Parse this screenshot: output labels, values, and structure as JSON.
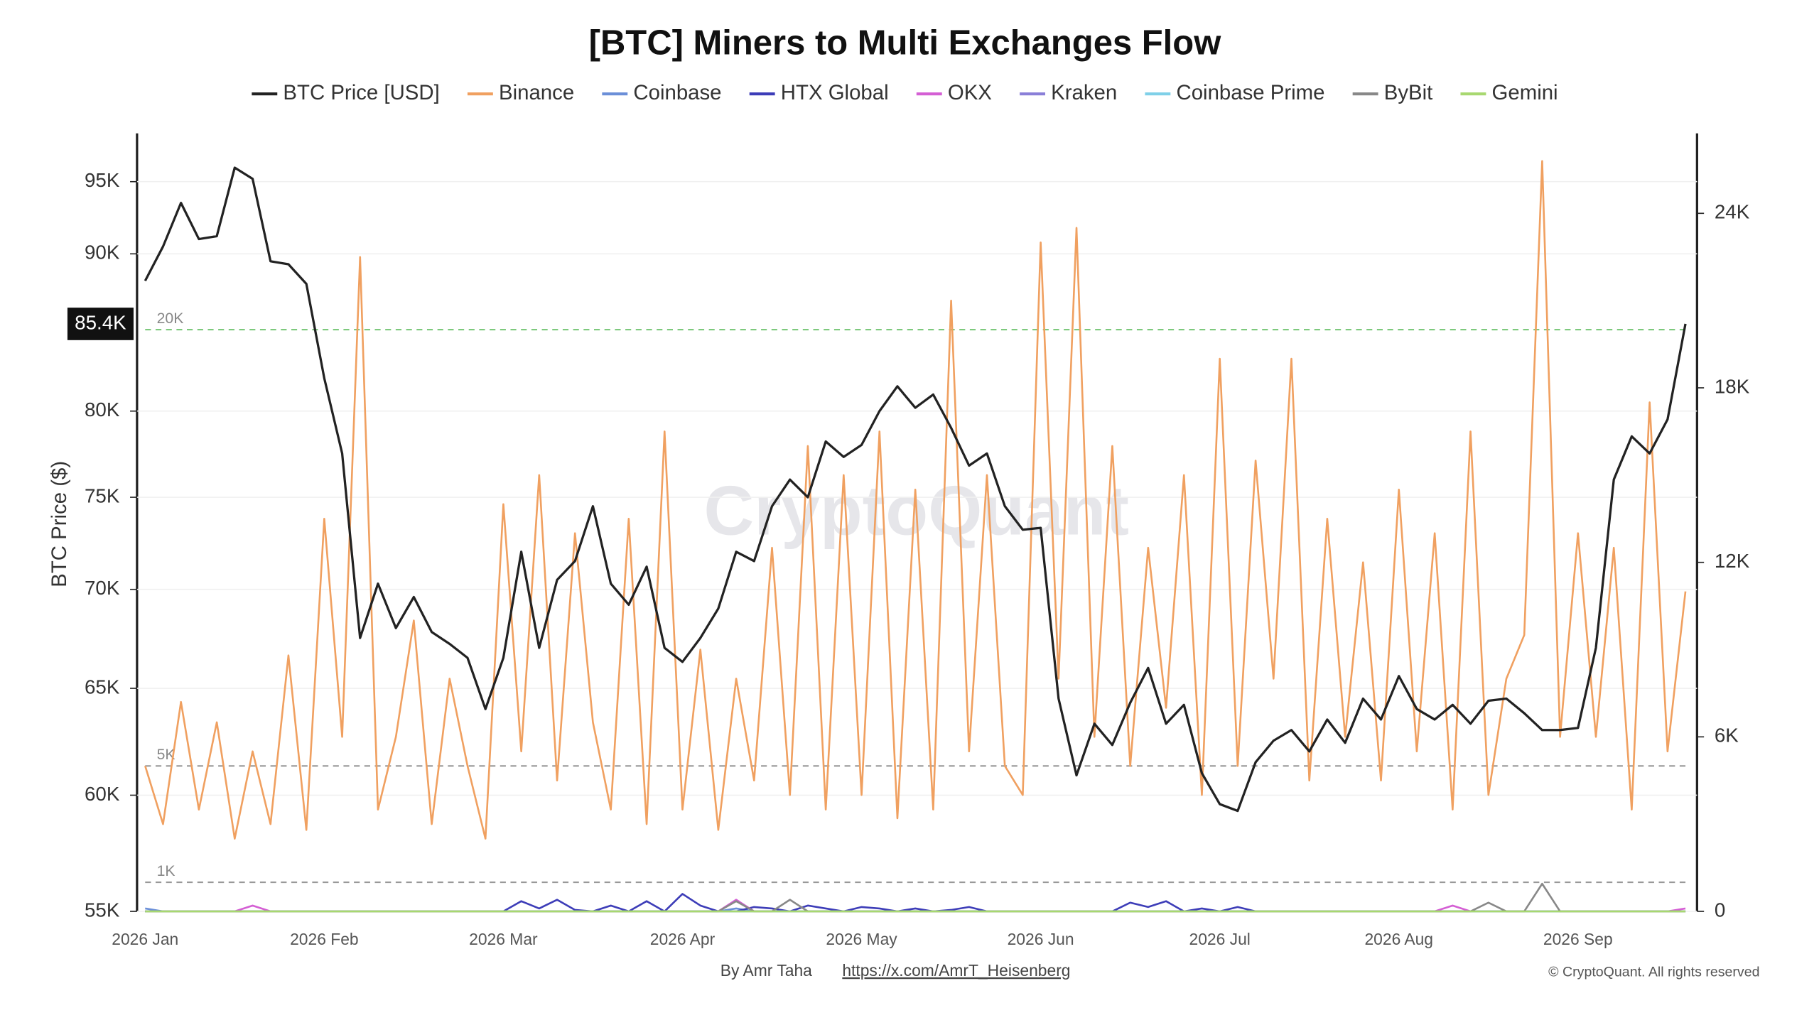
{
  "chart_data": {
    "type": "line",
    "title": "[BTC] Miners to Multi Exchanges Flow",
    "y_label": "BTC Price ($)",
    "watermark": "CryptoQuant",
    "credit": "By Amr Taha",
    "credit_link": "https://x.com/AmrT_Heisenberg",
    "copyright": "© CryptoQuant. All rights reserved",
    "ylog": true,
    "grid": true,
    "legend": "top",
    "categories": [
      "2026 Jan",
      null,
      null,
      null,
      null,
      null,
      null,
      null,
      null,
      null,
      "2026 Feb",
      null,
      null,
      null,
      null,
      null,
      null,
      null,
      null,
      null,
      "2026 Mar",
      null,
      null,
      null,
      null,
      null,
      null,
      null,
      null,
      null,
      "2026 Apr",
      null,
      null,
      null,
      null,
      null,
      null,
      null,
      null,
      null,
      "2026 May",
      null,
      null,
      null,
      null,
      null,
      null,
      null,
      null,
      null,
      "2026 Jun",
      null,
      null,
      null,
      null,
      null,
      null,
      null,
      null,
      null,
      "2026 Jul",
      null,
      null,
      null,
      null,
      null,
      null,
      null,
      null,
      null,
      "2026 Aug",
      null,
      null,
      null,
      null,
      null,
      null,
      null,
      null,
      null,
      "2026 Sep",
      null,
      null,
      null,
      null,
      null,
      null
    ],
    "ylim": [
      55000,
      98500
    ],
    "yticks": [
      {
        "value": 55000,
        "label": "55K"
      },
      {
        "value": 60000,
        "label": "60K"
      },
      {
        "value": 65000,
        "label": "65K"
      },
      {
        "value": 70000,
        "label": "70K"
      },
      {
        "value": 75000,
        "label": "75K"
      },
      {
        "value": 80000,
        "label": "80K"
      },
      {
        "value": 90000,
        "label": "90K"
      },
      {
        "value": 95000,
        "label": "95K"
      }
    ],
    "y2lim": [
      0,
      26750
    ],
    "y2ticks": [
      0,
      {
        "value": 6000,
        "label": "6K"
      },
      {
        "value": 12000,
        "label": "12K"
      },
      {
        "value": 18000,
        "label": "18K"
      },
      {
        "value": 24000,
        "label": "24K"
      }
    ],
    "price_tag": {
      "value": 85400,
      "label": "85.4K"
    },
    "ref_lines": [
      {
        "value": 20000,
        "label": "20K",
        "color": "#7dc97d"
      },
      {
        "value": 5000,
        "label": "5K",
        "color": "#999999"
      },
      {
        "value": 1000,
        "label": "1K",
        "color": "#999999"
      }
    ],
    "series": [
      {
        "name": "BTC Price [USD]",
        "color": "#222222",
        "axis": "y",
        "values": [
          88200,
          90500,
          93500,
          91000,
          91200,
          96000,
          95200,
          89500,
          89300,
          88000,
          82000,
          77500,
          67500,
          70300,
          68000,
          69600,
          67800,
          67200,
          66500,
          64000,
          66500,
          72000,
          67000,
          70500,
          71500,
          74500,
          70300,
          69200,
          71200,
          67000,
          66300,
          67500,
          69000,
          72000,
          71500,
          74500,
          76000,
          75000,
          78200,
          77300,
          78000,
          80000,
          81500,
          80200,
          81000,
          79000,
          76800,
          77500,
          74500,
          73200,
          73300,
          64500,
          60900,
          63300,
          62300,
          64300,
          66000,
          63300,
          64200,
          61000,
          59600,
          59300,
          61500,
          62500,
          63000,
          62000,
          63500,
          62400,
          64500,
          63500,
          65600,
          64000,
          63500,
          64200,
          63300,
          64400,
          64500,
          63800,
          63000,
          63000,
          63100,
          67000,
          76000,
          78500,
          77500,
          79500,
          85400
        ]
      },
      {
        "name": "Binance",
        "color": "#f0a060",
        "axis": "y2",
        "values": [
          5000,
          3000,
          7200,
          3500,
          6500,
          2500,
          5500,
          3000,
          8800,
          2800,
          13500,
          6000,
          22500,
          3500,
          6000,
          10000,
          3000,
          8000,
          5000,
          2500,
          14000,
          5500,
          15000,
          4500,
          13000,
          6500,
          3500,
          13500,
          3000,
          16500,
          3500,
          9000,
          2800,
          8000,
          4500,
          12500,
          4000,
          16000,
          3500,
          15000,
          4000,
          16500,
          3200,
          14500,
          3500,
          21000,
          5500,
          15000,
          5000,
          4000,
          23000,
          8000,
          23500,
          6000,
          16000,
          5000,
          12500,
          7000,
          15000,
          4000,
          19000,
          5000,
          15500,
          8000,
          19000,
          4500,
          13500,
          6000,
          12000,
          4500,
          14500,
          5500,
          13000,
          3500,
          16500,
          4000,
          8000,
          9500,
          25800,
          6000,
          13000,
          6000,
          12500,
          3500,
          17500,
          5500,
          11000
        ]
      },
      {
        "name": "Coinbase",
        "color": "#6b8fd8",
        "axis": "y2",
        "values": [
          100,
          0,
          0,
          0,
          0,
          0,
          0,
          0,
          0,
          0,
          0,
          0,
          0,
          0,
          0,
          0,
          0,
          0,
          0,
          0,
          0,
          0,
          0,
          0,
          0,
          0,
          0,
          0,
          0,
          0,
          0,
          0,
          0,
          100,
          0,
          0,
          0,
          0,
          0,
          0,
          0,
          0,
          0,
          0,
          0,
          0,
          0,
          0,
          0,
          0,
          0,
          0,
          0,
          0,
          0,
          0,
          0,
          0,
          0,
          0,
          0,
          0,
          0,
          0,
          0,
          0,
          0,
          0,
          0,
          0,
          0,
          0,
          0,
          0,
          0,
          0,
          0,
          0,
          0,
          0,
          0,
          0,
          0,
          0,
          0,
          0,
          0
        ]
      },
      {
        "name": "HTX Global",
        "color": "#3d3db8",
        "axis": "y2",
        "values": [
          0,
          0,
          0,
          0,
          0,
          0,
          0,
          0,
          0,
          0,
          0,
          0,
          0,
          0,
          0,
          0,
          0,
          0,
          0,
          0,
          0,
          350,
          100,
          400,
          50,
          0,
          200,
          0,
          350,
          0,
          600,
          200,
          0,
          0,
          150,
          100,
          0,
          200,
          100,
          0,
          150,
          100,
          0,
          100,
          0,
          50,
          150,
          0,
          0,
          0,
          0,
          0,
          0,
          0,
          0,
          300,
          150,
          350,
          0,
          100,
          0,
          150,
          0,
          0,
          0,
          0,
          0,
          0,
          0,
          0,
          0,
          0,
          0,
          0,
          0,
          0,
          0,
          0,
          0,
          0,
          0,
          0,
          0,
          0,
          0,
          0,
          0
        ]
      },
      {
        "name": "OKX",
        "color": "#d45fd4",
        "axis": "y2",
        "values": [
          0,
          0,
          0,
          0,
          0,
          0,
          200,
          0,
          0,
          0,
          0,
          0,
          0,
          0,
          0,
          0,
          0,
          0,
          0,
          0,
          0,
          0,
          0,
          0,
          0,
          0,
          0,
          0,
          0,
          0,
          0,
          0,
          0,
          400,
          0,
          0,
          0,
          0,
          0,
          0,
          0,
          0,
          0,
          0,
          0,
          0,
          0,
          0,
          0,
          0,
          0,
          0,
          0,
          0,
          0,
          0,
          0,
          0,
          0,
          0,
          0,
          0,
          0,
          0,
          0,
          0,
          0,
          0,
          0,
          0,
          0,
          0,
          0,
          200,
          0,
          0,
          0,
          0,
          0,
          0,
          0,
          0,
          0,
          0,
          0,
          0,
          100
        ]
      },
      {
        "name": "Kraken",
        "color": "#8a7fd8",
        "axis": "y2",
        "values": [
          0,
          0,
          0,
          0,
          0,
          0,
          0,
          0,
          0,
          0,
          0,
          0,
          0,
          0,
          0,
          0,
          0,
          0,
          0,
          0,
          0,
          0,
          0,
          0,
          0,
          0,
          0,
          0,
          0,
          0,
          0,
          0,
          0,
          0,
          0,
          0,
          0,
          0,
          0,
          0,
          0,
          0,
          0,
          0,
          0,
          0,
          0,
          0,
          0,
          0,
          0,
          0,
          0,
          0,
          0,
          0,
          0,
          0,
          0,
          0,
          0,
          0,
          0,
          0,
          0,
          0,
          0,
          0,
          0,
          0,
          0,
          0,
          0,
          0,
          0,
          0,
          0,
          0,
          0,
          0,
          0,
          0,
          0,
          0,
          0,
          0,
          0
        ]
      },
      {
        "name": "Coinbase Prime",
        "color": "#7fd0e8",
        "axis": "y2",
        "values": [
          0,
          0,
          0,
          0,
          0,
          0,
          0,
          0,
          0,
          0,
          0,
          0,
          0,
          0,
          0,
          0,
          0,
          0,
          0,
          0,
          0,
          0,
          0,
          0,
          0,
          0,
          0,
          0,
          0,
          0,
          0,
          0,
          0,
          0,
          0,
          0,
          0,
          0,
          0,
          0,
          0,
          0,
          0,
          0,
          0,
          0,
          0,
          0,
          0,
          0,
          0,
          0,
          0,
          0,
          0,
          0,
          0,
          0,
          0,
          0,
          0,
          0,
          0,
          0,
          0,
          0,
          0,
          0,
          0,
          0,
          0,
          0,
          0,
          0,
          0,
          0,
          0,
          0,
          0,
          0,
          0,
          0,
          0,
          0,
          0,
          0,
          0
        ]
      },
      {
        "name": "ByBit",
        "color": "#888888",
        "axis": "y2",
        "values": [
          0,
          0,
          0,
          0,
          0,
          0,
          0,
          0,
          0,
          0,
          0,
          0,
          0,
          0,
          0,
          0,
          0,
          0,
          0,
          0,
          0,
          0,
          0,
          0,
          0,
          0,
          0,
          0,
          0,
          0,
          0,
          0,
          0,
          350,
          0,
          0,
          400,
          0,
          0,
          0,
          0,
          0,
          0,
          0,
          0,
          0,
          0,
          0,
          0,
          0,
          0,
          0,
          0,
          0,
          0,
          0,
          0,
          0,
          0,
          0,
          0,
          0,
          0,
          0,
          0,
          0,
          0,
          0,
          0,
          0,
          0,
          0,
          0,
          0,
          0,
          300,
          0,
          0,
          950,
          0,
          0,
          0,
          0,
          0,
          0,
          0,
          0
        ]
      },
      {
        "name": "Gemini",
        "color": "#a8d870",
        "axis": "y2",
        "values": [
          0,
          0,
          0,
          0,
          0,
          0,
          0,
          0,
          0,
          0,
          0,
          0,
          0,
          0,
          0,
          0,
          0,
          0,
          0,
          0,
          0,
          0,
          0,
          0,
          0,
          0,
          0,
          0,
          0,
          0,
          0,
          0,
          0,
          0,
          0,
          0,
          0,
          0,
          0,
          0,
          0,
          0,
          0,
          0,
          0,
          0,
          0,
          0,
          0,
          0,
          0,
          0,
          0,
          0,
          0,
          0,
          0,
          0,
          0,
          0,
          0,
          0,
          0,
          0,
          0,
          0,
          0,
          0,
          0,
          0,
          0,
          0,
          0,
          0,
          0,
          0,
          0,
          0,
          0,
          0,
          0,
          0,
          0,
          0,
          0,
          0,
          0
        ]
      }
    ]
  }
}
